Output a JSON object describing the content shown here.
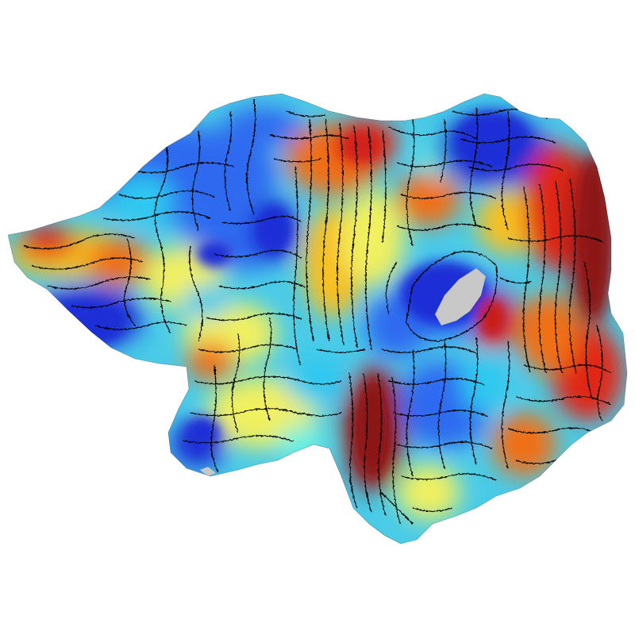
{
  "figure": {
    "kind": "flattened cortical surface map with parcel boundaries",
    "colormap": "jet",
    "colormap_stops": [
      "#1f2fd6",
      "#2f6bf0",
      "#2ec8f0",
      "#66f0e0",
      "#f0f060",
      "#f7c020",
      "#f07018",
      "#e02818",
      "#9a1a1a"
    ],
    "background": "#ffffff",
    "medial_wall_color": "#c8c8c8",
    "boundary_color": "#000000"
  }
}
